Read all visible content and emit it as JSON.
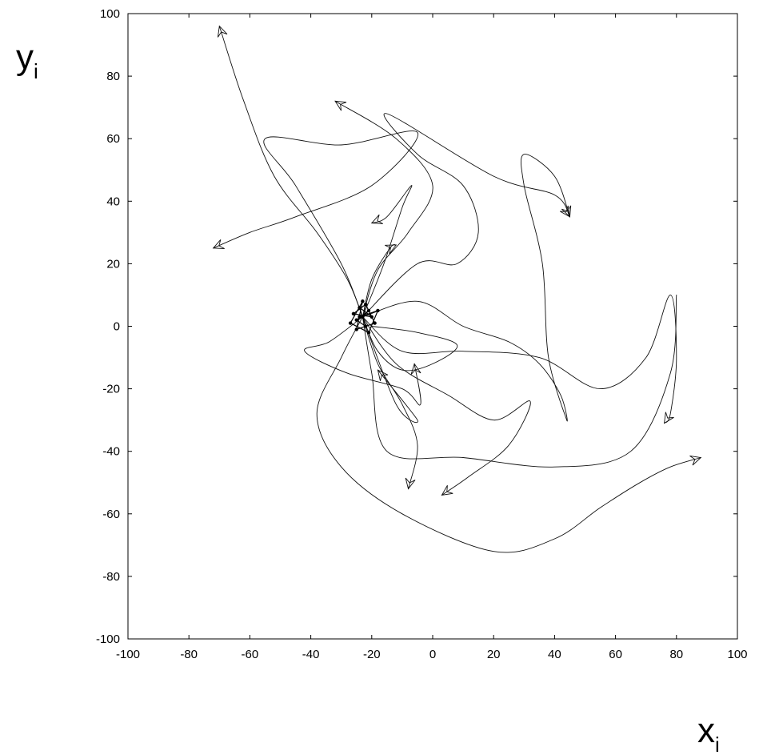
{
  "chart_data": {
    "type": "line",
    "title": "",
    "xlabel": {
      "main": "x",
      "sub": "i"
    },
    "ylabel": {
      "main": "y",
      "sub": "i"
    },
    "xlim": [
      -100,
      100
    ],
    "ylim": [
      -100,
      100
    ],
    "xticks": [
      -100,
      -80,
      -60,
      -40,
      -20,
      0,
      20,
      40,
      60,
      80,
      100
    ],
    "yticks": [
      100,
      80,
      60,
      40,
      20,
      0,
      -20,
      -40,
      -60,
      -80,
      -100
    ],
    "xtick_labels": [
      "-100",
      "-80",
      "-60",
      "-40",
      "-20",
      "0",
      "20",
      "40",
      "60",
      "80",
      "100"
    ],
    "ytick_labels": [
      "100",
      "80",
      "60",
      "40",
      "20",
      "0",
      "-20",
      "-40",
      "-60",
      "-80",
      "-100"
    ],
    "grid": false,
    "legend": "none",
    "line_color": "#111111",
    "center": [
      -23,
      3
    ],
    "series": [
      {
        "points": [
          [
            -23,
            3
          ],
          [
            -28,
            15
          ],
          [
            -38,
            30
          ],
          [
            -52,
            48
          ],
          [
            -62,
            72
          ],
          [
            -70,
            96
          ]
        ],
        "arrow_end": true
      },
      {
        "points": [
          [
            -23,
            3
          ],
          [
            -18,
            18
          ],
          [
            -8,
            30
          ],
          [
            0,
            45
          ],
          [
            -12,
            60
          ],
          [
            -32,
            72
          ]
        ],
        "arrow_end": true
      },
      {
        "points": [
          [
            -23,
            3
          ],
          [
            -30,
            20
          ],
          [
            -45,
            45
          ],
          [
            -55,
            60
          ],
          [
            -30,
            58
          ],
          [
            -5,
            62
          ],
          [
            -20,
            45
          ],
          [
            -45,
            35
          ],
          [
            -60,
            30
          ],
          [
            -72,
            25
          ]
        ],
        "arrow_end": true
      },
      {
        "points": [
          [
            -23,
            3
          ],
          [
            -16,
            20
          ],
          [
            -10,
            38
          ],
          [
            -7,
            45
          ],
          [
            -15,
            35
          ],
          [
            -20,
            33
          ]
        ],
        "arrow_end": true
      },
      {
        "points": [
          [
            -23,
            3
          ],
          [
            -20,
            15
          ],
          [
            -14,
            25
          ],
          [
            -12,
            26
          ]
        ],
        "arrow_end": true
      },
      {
        "points": [
          [
            -23,
            3
          ],
          [
            -5,
            20
          ],
          [
            8,
            20
          ],
          [
            15,
            30
          ],
          [
            10,
            45
          ],
          [
            -5,
            55
          ],
          [
            -15,
            68
          ],
          [
            20,
            48
          ],
          [
            40,
            42
          ],
          [
            45,
            35
          ]
        ],
        "arrow_end": true
      },
      {
        "points": [
          [
            -23,
            3
          ],
          [
            -5,
            8
          ],
          [
            10,
            0
          ],
          [
            25,
            -5
          ],
          [
            35,
            -12
          ],
          [
            42,
            -22
          ],
          [
            44,
            -30
          ],
          [
            38,
            -10
          ],
          [
            36,
            20
          ],
          [
            30,
            45
          ],
          [
            30,
            55
          ],
          [
            40,
            48
          ],
          [
            45,
            35
          ]
        ],
        "arrow_end": true
      },
      {
        "points": [
          [
            -23,
            3
          ],
          [
            -10,
            -8
          ],
          [
            10,
            -8
          ],
          [
            35,
            -10
          ],
          [
            55,
            -20
          ],
          [
            70,
            -10
          ],
          [
            78,
            10
          ],
          [
            80,
            -10
          ],
          [
            78,
            -28
          ],
          [
            76,
            -31
          ]
        ],
        "arrow_end": true
      },
      {
        "points": [
          [
            -23,
            3
          ],
          [
            -20,
            -15
          ],
          [
            -15,
            -40
          ],
          [
            10,
            -42
          ],
          [
            40,
            -45
          ],
          [
            65,
            -40
          ],
          [
            78,
            -15
          ],
          [
            80,
            10
          ]
        ],
        "arrow_end": false
      },
      {
        "points": [
          [
            -23,
            3
          ],
          [
            -30,
            -10
          ],
          [
            -38,
            -28
          ],
          [
            -30,
            -45
          ],
          [
            -10,
            -60
          ],
          [
            20,
            -72
          ],
          [
            40,
            -68
          ],
          [
            55,
            -58
          ],
          [
            68,
            -50
          ],
          [
            78,
            -45
          ],
          [
            88,
            -42
          ]
        ],
        "arrow_end": true
      },
      {
        "points": [
          [
            -23,
            3
          ],
          [
            -18,
            -12
          ],
          [
            -10,
            -25
          ],
          [
            -5,
            -38
          ],
          [
            -8,
            -52
          ]
        ],
        "arrow_end": true
      },
      {
        "points": [
          [
            -23,
            3
          ],
          [
            -12,
            -12
          ],
          [
            5,
            -22
          ],
          [
            20,
            -30
          ],
          [
            32,
            -24
          ],
          [
            25,
            -38
          ],
          [
            12,
            -48
          ],
          [
            3,
            -54
          ]
        ],
        "arrow_end": true
      },
      {
        "points": [
          [
            -23,
            3
          ],
          [
            -34,
            -5
          ],
          [
            -42,
            -8
          ],
          [
            -28,
            -15
          ],
          [
            -10,
            -20
          ],
          [
            -4,
            -25
          ],
          [
            -6,
            -12
          ]
        ],
        "arrow_end": true
      },
      {
        "points": [
          [
            -23,
            3
          ],
          [
            -18,
            -8
          ],
          [
            -10,
            -14
          ],
          [
            0,
            -12
          ],
          [
            8,
            -6
          ],
          [
            -5,
            -2
          ],
          [
            -20,
            0
          ]
        ],
        "arrow_end": false
      },
      {
        "points": [
          [
            -23,
            3
          ],
          [
            -12,
            -25
          ],
          [
            -5,
            -30
          ],
          [
            -18,
            -14
          ]
        ],
        "arrow_end": true
      }
    ],
    "cluster_points": [
      [
        -23,
        3
      ],
      [
        -21,
        5
      ],
      [
        -25,
        2
      ],
      [
        -22,
        0
      ],
      [
        -24,
        6
      ],
      [
        -20,
        3
      ],
      [
        -26,
        4
      ],
      [
        -22,
        7
      ],
      [
        -19,
        1
      ],
      [
        -25,
        -1
      ],
      [
        -23,
        8
      ],
      [
        -27,
        1
      ],
      [
        -21,
        -2
      ],
      [
        -18,
        5
      ],
      [
        -24,
        3
      ]
    ]
  }
}
